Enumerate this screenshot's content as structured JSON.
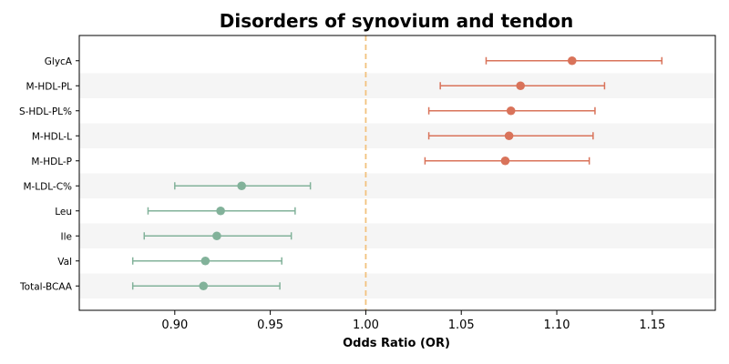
{
  "chart_data": {
    "type": "forest",
    "title": "Disorders of synovium and tendon",
    "xlabel": "Odds Ratio (OR)",
    "xlim": [
      0.85,
      1.183
    ],
    "xticks": [
      0.9,
      0.95,
      1.0,
      1.05,
      1.1,
      1.15
    ],
    "xtick_labels": [
      "0.90",
      "0.95",
      "1.00",
      "1.05",
      "1.10",
      "1.15"
    ],
    "reference_line": 1.0,
    "alternating_row_shading": true,
    "colors": {
      "positive": "#d9735a",
      "negative": "#82b29a",
      "reference": "#f2c27e",
      "row_shade": "#f5f5f5"
    },
    "items": [
      {
        "label": "GlycA",
        "or": 1.108,
        "lower": 1.063,
        "upper": 1.155
      },
      {
        "label": "M-HDL-PL",
        "or": 1.081,
        "lower": 1.039,
        "upper": 1.125
      },
      {
        "label": "S-HDL-PL%",
        "or": 1.076,
        "lower": 1.033,
        "upper": 1.12
      },
      {
        "label": "M-HDL-L",
        "or": 1.075,
        "lower": 1.033,
        "upper": 1.119
      },
      {
        "label": "M-HDL-P",
        "or": 1.073,
        "lower": 1.031,
        "upper": 1.117
      },
      {
        "label": "M-LDL-C%",
        "or": 0.935,
        "lower": 0.9,
        "upper": 0.971
      },
      {
        "label": "Leu",
        "or": 0.924,
        "lower": 0.886,
        "upper": 0.963
      },
      {
        "label": "Ile",
        "or": 0.922,
        "lower": 0.884,
        "upper": 0.961
      },
      {
        "label": "Val",
        "or": 0.916,
        "lower": 0.878,
        "upper": 0.956
      },
      {
        "label": "Total-BCAA",
        "or": 0.915,
        "lower": 0.878,
        "upper": 0.955
      }
    ]
  }
}
